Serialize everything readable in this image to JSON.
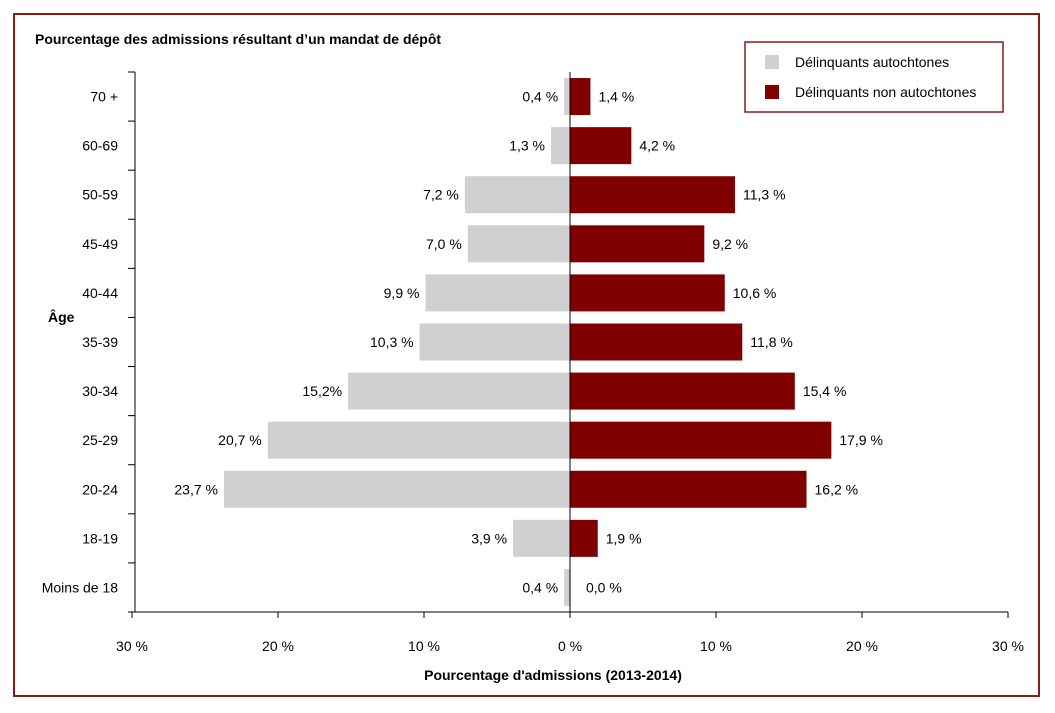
{
  "chart_data": {
    "type": "bar",
    "orientation": "horizontal-diverging",
    "title": "Pourcentage des admissions résultant d’un mandat de dépôt",
    "xlabel": "Pourcentage d'admissions (2013-2014)",
    "ylabel": "Âge",
    "categories": [
      "70 +",
      "60-69",
      "50-59",
      "45-49",
      "40-44",
      "35-39",
      "30-34",
      "25-29",
      "20-24",
      "18-19",
      "Moins de 18"
    ],
    "series": [
      {
        "name": "Délinquants autochtones",
        "side": "left",
        "color": "#d0d0d0",
        "values": [
          0.4,
          1.3,
          7.2,
          7.0,
          9.9,
          10.3,
          15.2,
          20.7,
          23.7,
          3.9,
          0.4
        ],
        "labels": [
          "0,4 %",
          "1,3 %",
          "7,2 %",
          "7,0 %",
          "9,9 %",
          "10,3 %",
          "15,2%",
          "20,7 %",
          "23,7 %",
          "3,9 %",
          "0,4 %"
        ]
      },
      {
        "name": "Délinquants non autochtones",
        "side": "right",
        "color": "#800000",
        "values": [
          1.4,
          4.2,
          11.3,
          9.2,
          10.6,
          11.8,
          15.4,
          17.9,
          16.2,
          1.9,
          0.0
        ],
        "labels": [
          "1,4 %",
          "4,2 %",
          "11,3 %",
          "9,2 %",
          "10,6 %",
          "11,8 %",
          "15,4 %",
          "17,9 %",
          "16,2 %",
          "1,9 %",
          "0,0 %"
        ]
      }
    ],
    "xlim": [
      -30,
      30
    ],
    "xticks": [
      -30,
      -20,
      -10,
      0,
      10,
      20,
      30
    ],
    "xtick_labels": [
      "30 %",
      "20 %",
      "10 %",
      "0 %",
      "10 %",
      "20 %",
      "30 %"
    ],
    "legend": "top-right",
    "grid": false
  }
}
